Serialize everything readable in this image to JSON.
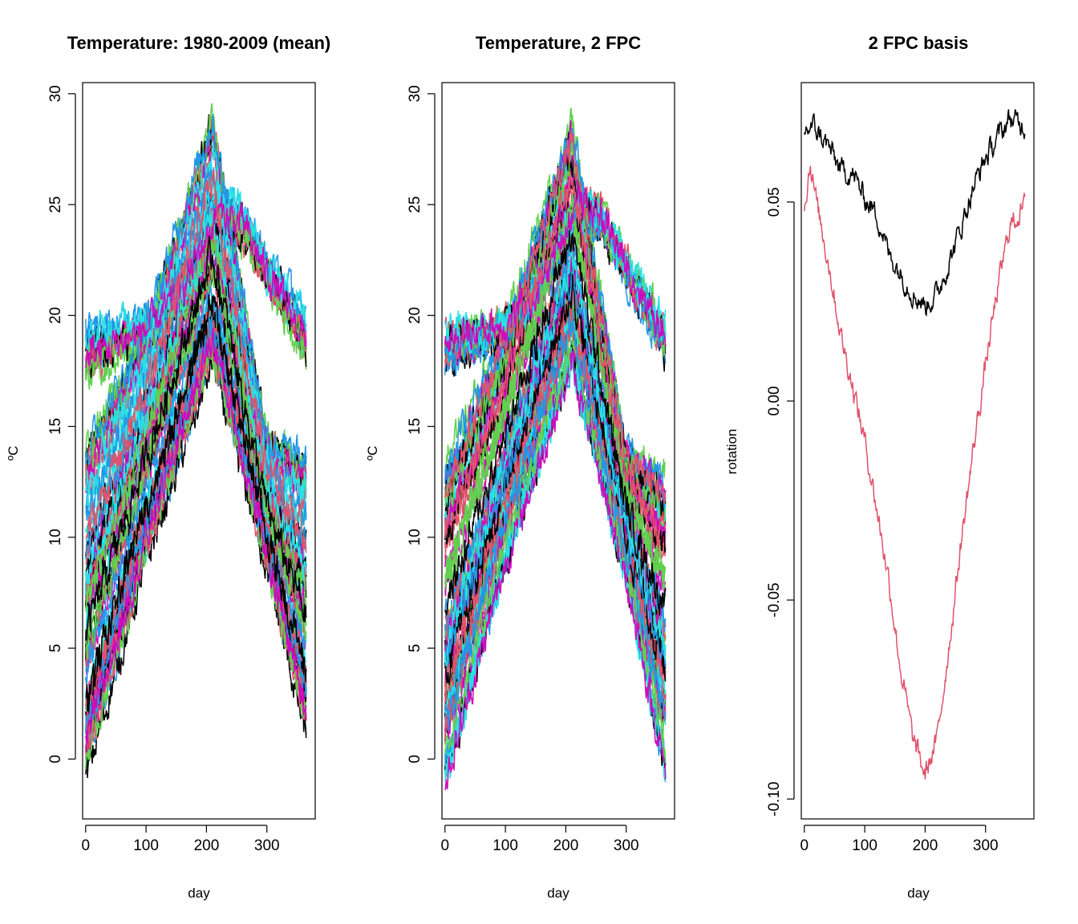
{
  "chart_data": [
    {
      "type": "line",
      "title": "Temperature: 1980-2009 (mean)",
      "xlabel": "day",
      "ylabel": "ºC",
      "xlim": [
        -5,
        380
      ],
      "ylim": [
        -2.7,
        30.5
      ],
      "xticks": [
        0,
        100,
        200,
        300
      ],
      "yticks": [
        0,
        5,
        10,
        15,
        20,
        25,
        30
      ],
      "grid": false,
      "legend": "none",
      "n_curves": 80,
      "palette": [
        "#000000",
        "#DF536B",
        "#61D04F",
        "#2297E6",
        "#28E2E5",
        "#CD0BBC"
      ],
      "curve_families": [
        {
          "shape": "bell",
          "days": [
            0,
            100,
            210,
            300,
            365
          ],
          "min_y": [
            -1.5,
            8.5,
            17.5,
            8.5,
            0.5
          ],
          "max_y": [
            14.0,
            19.5,
            29.0,
            14.5,
            13.5
          ]
        },
        {
          "shape": "plateau",
          "days": [
            0,
            100,
            150,
            220,
            260,
            300,
            365
          ],
          "min_y": [
            17.0,
            19.0,
            20.5,
            24.0,
            23.5,
            21.5,
            18.0
          ],
          "max_y": [
            19.5,
            19.8,
            21.0,
            25.5,
            24.8,
            22.5,
            20.0
          ]
        }
      ]
    },
    {
      "type": "line",
      "title": "Temperature, 2 FPC",
      "xlabel": "day",
      "ylabel": "ºC",
      "xlim": [
        -5,
        380
      ],
      "ylim": [
        -2.7,
        30.5
      ],
      "xticks": [
        0,
        100,
        200,
        300
      ],
      "yticks": [
        0,
        5,
        10,
        15,
        20,
        25,
        30
      ],
      "grid": false,
      "legend": "none",
      "n_curves": 80,
      "palette": [
        "#000000",
        "#DF536B",
        "#61D04F",
        "#2297E6",
        "#28E2E5",
        "#CD0BBC"
      ],
      "curve_families": [
        {
          "shape": "bell",
          "days": [
            0,
            100,
            210,
            300,
            365
          ],
          "min_y": [
            -1.5,
            8.5,
            17.5,
            8.0,
            -1.0
          ],
          "max_y": [
            13.5,
            19.5,
            28.8,
            14.0,
            13.0
          ]
        },
        {
          "shape": "plateau",
          "days": [
            0,
            100,
            150,
            220,
            260,
            300,
            365
          ],
          "min_y": [
            17.5,
            19.0,
            20.5,
            24.0,
            23.5,
            21.5,
            18.0
          ],
          "max_y": [
            19.2,
            19.8,
            21.0,
            25.5,
            24.8,
            22.5,
            19.5
          ]
        }
      ]
    },
    {
      "type": "line",
      "title": "2 FPC basis",
      "xlabel": "day",
      "ylabel": "rotation",
      "xlim": [
        -5,
        380
      ],
      "ylim": [
        -0.105,
        0.08
      ],
      "xticks": [
        0,
        100,
        200,
        300
      ],
      "yticks": [
        -0.1,
        -0.05,
        0.0,
        0.05
      ],
      "ytick_labels": [
        "-0.10",
        "-0.05",
        "0.00",
        "0.05"
      ],
      "grid": false,
      "legend": "none",
      "series": [
        {
          "color": "#000000",
          "x": [
            0,
            15,
            40,
            60,
            80,
            100,
            120,
            140,
            160,
            180,
            200,
            220,
            240,
            260,
            280,
            300,
            320,
            340,
            365
          ],
          "y": [
            0.068,
            0.069,
            0.064,
            0.058,
            0.057,
            0.051,
            0.047,
            0.037,
            0.032,
            0.027,
            0.024,
            0.027,
            0.035,
            0.044,
            0.054,
            0.061,
            0.066,
            0.071,
            0.069
          ]
        },
        {
          "color": "#DF536B",
          "x": [
            0,
            10,
            20,
            40,
            60,
            80,
            100,
            120,
            140,
            160,
            180,
            200,
            220,
            240,
            260,
            280,
            300,
            320,
            340,
            365
          ],
          "y": [
            0.049,
            0.06,
            0.05,
            0.035,
            0.017,
            0.004,
            -0.01,
            -0.027,
            -0.045,
            -0.068,
            -0.085,
            -0.094,
            -0.085,
            -0.061,
            -0.035,
            -0.012,
            0.009,
            0.028,
            0.044,
            0.049
          ]
        }
      ]
    }
  ]
}
